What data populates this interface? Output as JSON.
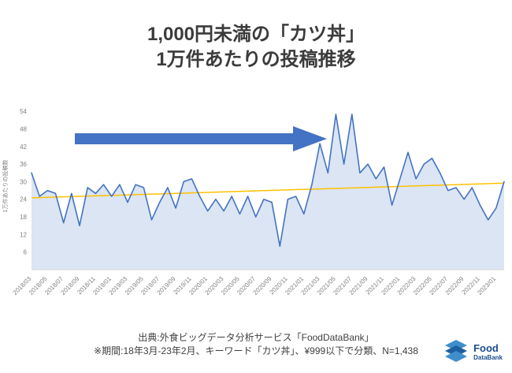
{
  "title": {
    "line1": "1,000円未満の「カツ丼」",
    "line2": "1万件あたりの投稿推移"
  },
  "footer": {
    "source_line": "出典:外食ビッグデータ分析サービス「FoodDataBank」",
    "note_line": "※期間:18年3月-23年2月、キーワード「カツ丼」、¥999以下で分類、N=1,438"
  },
  "logo": {
    "name": "Food",
    "sub": "DataBank"
  },
  "chart_data": {
    "type": "area",
    "title": "1,000円未満の「カツ丼」 1万件あたりの投稿推移",
    "xlabel": "",
    "ylabel": "1万件あたりの投稿数",
    "ylim": [
      0,
      57
    ],
    "yticks": [
      6,
      12,
      18,
      24,
      30,
      36,
      42,
      48,
      54
    ],
    "grid": false,
    "legend": false,
    "x": [
      "2018/03",
      "2018/04",
      "2018/05",
      "2018/06",
      "2018/07",
      "2018/08",
      "2018/09",
      "2018/10",
      "2018/11",
      "2018/12",
      "2019/01",
      "2019/02",
      "2019/03",
      "2019/04",
      "2019/05",
      "2019/06",
      "2019/07",
      "2019/08",
      "2019/09",
      "2019/10",
      "2019/11",
      "2019/12",
      "2020/01",
      "2020/02",
      "2020/03",
      "2020/04",
      "2020/05",
      "2020/06",
      "2020/07",
      "2020/08",
      "2020/09",
      "2020/10",
      "2020/11",
      "2020/12",
      "2021/01",
      "2021/02",
      "2021/03",
      "2021/04",
      "2021/05",
      "2021/06",
      "2021/07",
      "2021/08",
      "2021/09",
      "2021/10",
      "2021/11",
      "2021/12",
      "2022/01",
      "2022/02",
      "2022/03",
      "2022/04",
      "2022/05",
      "2022/06",
      "2022/07",
      "2022/08",
      "2022/09",
      "2022/10",
      "2022/11",
      "2022/12",
      "2023/01",
      "2023/02"
    ],
    "values": [
      33,
      25,
      27,
      26,
      16,
      26,
      15,
      28,
      26,
      29,
      25,
      29,
      23,
      29,
      28,
      17,
      23,
      28,
      21,
      30,
      31,
      25,
      20,
      24,
      20,
      25,
      19,
      25,
      18,
      24,
      23,
      8,
      24,
      25,
      19,
      29,
      43,
      33,
      53,
      36,
      53,
      33,
      36,
      31,
      35,
      22,
      31,
      40,
      31,
      36,
      38,
      33,
      27,
      28,
      24,
      28,
      22,
      17,
      21,
      30
    ],
    "series_color": "#4472c4",
    "fill_color": "#dbe5f3",
    "axis_color": "#d9d9d9",
    "tick_color": "#808080",
    "trend": {
      "start": 24.5,
      "end": 29.5,
      "color": "#ffc000"
    },
    "arrow_color": "#4472c4"
  }
}
